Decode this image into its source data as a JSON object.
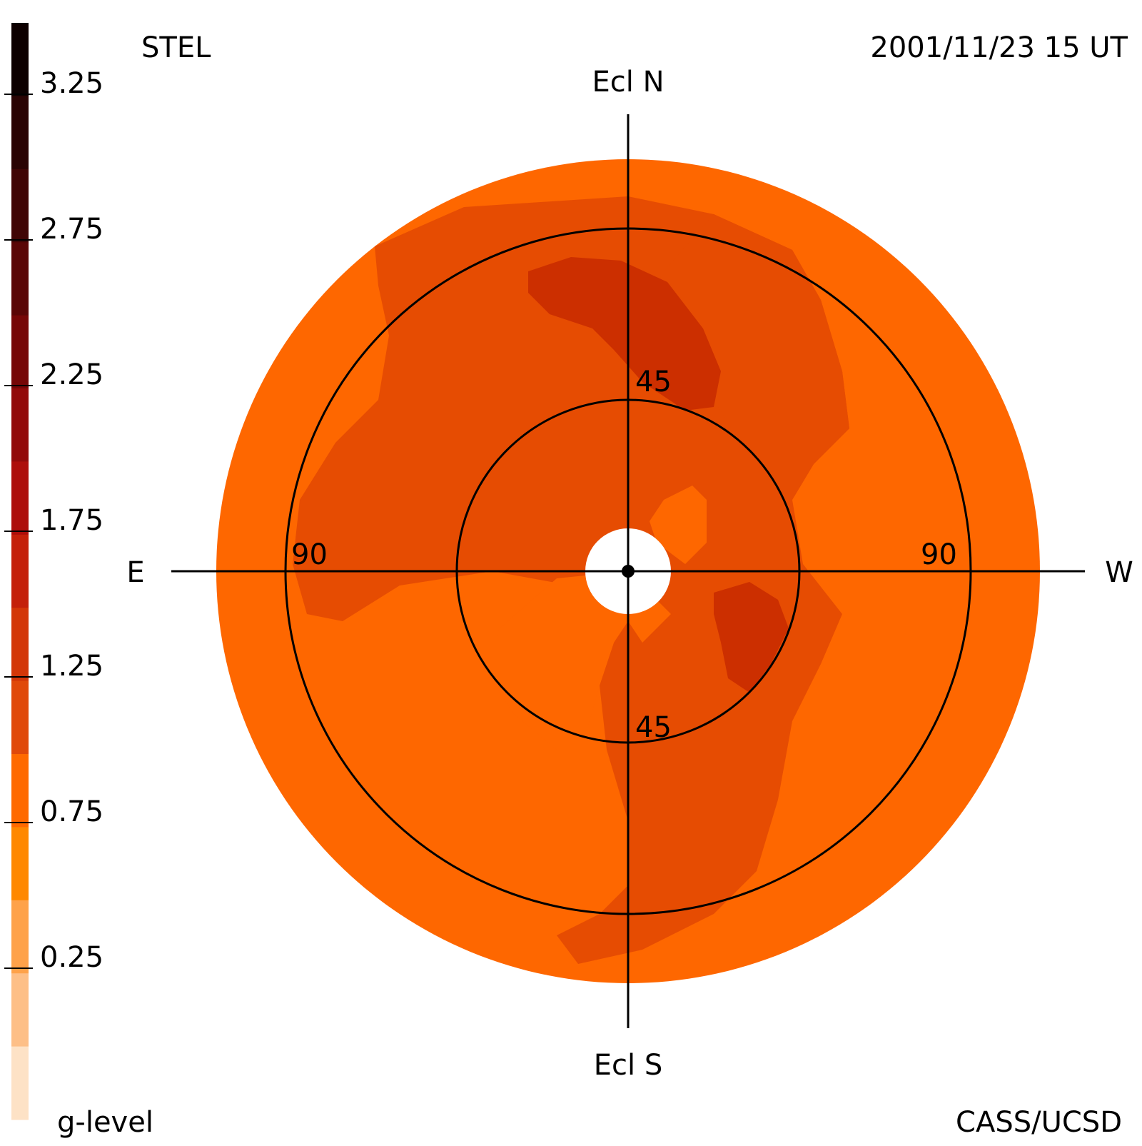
{
  "header": {
    "instrument": "STEL",
    "timestamp": "2001/11/23 15 UT"
  },
  "footer": {
    "scale_title": "g-level",
    "credit": "CASS/UCSD"
  },
  "axes": {
    "north": "Ecl N",
    "south": "Ecl S",
    "east": "E",
    "west": "W"
  },
  "rings": {
    "inner_north": "45",
    "inner_south": "45",
    "outer_east": "90",
    "outer_west": "90"
  },
  "colorbar": {
    "ticks": [
      "3.25",
      "2.75",
      "2.25",
      "1.75",
      "1.25",
      "0.75",
      "0.25"
    ],
    "bands": [
      "#0d0000",
      "#2a0303",
      "#400505",
      "#5a0606",
      "#760707",
      "#920a0a",
      "#ad0e0b",
      "#c4200a",
      "#d33708",
      "#e0490a",
      "#ff6a00",
      "#ff8800",
      "#fea24a",
      "#fdbf87",
      "#fde2c6"
    ]
  },
  "colors": {
    "level_0_75": "#fe6700",
    "level_1_00": "#e64c02",
    "level_1_25": "#cc2f00"
  }
}
